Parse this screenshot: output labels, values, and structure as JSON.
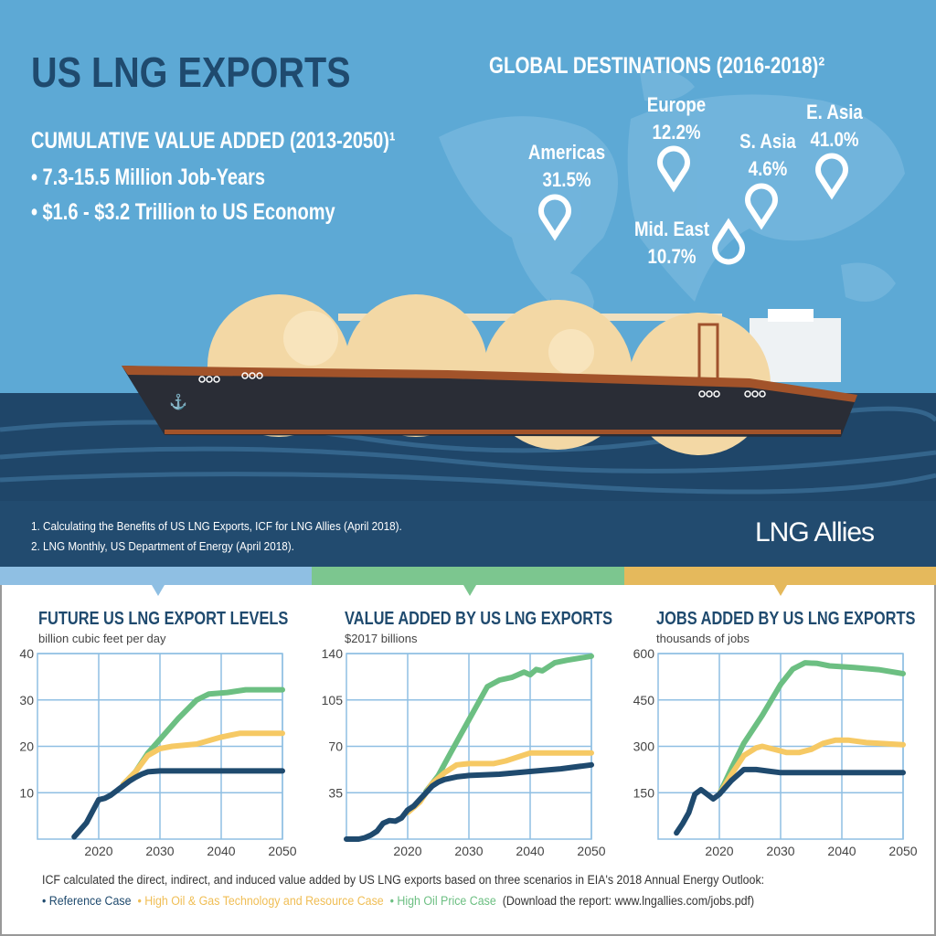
{
  "header": {
    "title": "US LNG EXPORTS",
    "cumulative_heading": "CUMULATIVE VALUE ADDED (2013-2050)¹",
    "bullets": [
      "• 7.3-15.5 Million Job-Years",
      "• $1.6 - $3.2 Trillion to US Economy"
    ]
  },
  "destinations": {
    "heading": "GLOBAL DESTINATIONS (2016-2018)²",
    "items": [
      {
        "region": "Americas",
        "share": "31.5%"
      },
      {
        "region": "Europe",
        "share": "12.2%"
      },
      {
        "region": "Mid. East",
        "share": "10.7%"
      },
      {
        "region": "S. Asia",
        "share": "4.6%"
      },
      {
        "region": "E. Asia",
        "share": "41.0%"
      }
    ]
  },
  "footnotes": [
    "1. Calculating the Benefits of US LNG Exports, ICF for LNG Allies (April 2018).",
    "2. LNG Monthly, US Department of Energy (April 2018)."
  ],
  "logo": "LNG Allies",
  "colors": {
    "sky": "#5da9d5",
    "title": "#1f4a6e",
    "sea": "#1f4669",
    "band_blue": "#8fbfe3",
    "band_green": "#7cc68f",
    "band_gold": "#e5b95c",
    "reference": "#1f4a6e",
    "tech": "#f6c964",
    "oil": "#6cbf82"
  },
  "chart_data": [
    {
      "type": "line",
      "title": "FUTURE US LNG EXPORT LEVELS",
      "ylabel": "billion cubic feet per day",
      "xlim": [
        2010,
        2050
      ],
      "ylim": [
        0,
        40
      ],
      "xticks": [
        "2020",
        "2030",
        "2040",
        "2050"
      ],
      "yticks": [
        "10",
        "20",
        "30",
        "40"
      ],
      "grid": true,
      "series": [
        {
          "name": "Reference Case",
          "color": "#1f4a6e",
          "points": [
            [
              2016,
              0.5
            ],
            [
              2017,
              2
            ],
            [
              2018,
              3.5
            ],
            [
              2019,
              6
            ],
            [
              2020,
              8.5
            ],
            [
              2021,
              8.8
            ],
            [
              2022,
              9.5
            ],
            [
              2023,
              10.5
            ],
            [
              2024,
              11.5
            ],
            [
              2025,
              12.5
            ],
            [
              2026,
              13.3
            ],
            [
              2027,
              14
            ],
            [
              2028,
              14.5
            ],
            [
              2030,
              14.7
            ],
            [
              2050,
              14.7
            ]
          ]
        },
        {
          "name": "High Oil & Gas Technology and Resource Case",
          "color": "#f6c964",
          "points": [
            [
              2024,
              11.8
            ],
            [
              2026,
              14.5
            ],
            [
              2028,
              18
            ],
            [
              2030,
              19.5
            ],
            [
              2032,
              20
            ],
            [
              2036,
              20.5
            ],
            [
              2040,
              22
            ],
            [
              2043,
              22.8
            ],
            [
              2050,
              22.8
            ]
          ]
        },
        {
          "name": "High Oil Price Case",
          "color": "#6cbf82",
          "points": [
            [
              2024,
              11.8
            ],
            [
              2026,
              14.5
            ],
            [
              2028,
              18.5
            ],
            [
              2030,
              21.5
            ],
            [
              2033,
              26
            ],
            [
              2036,
              30
            ],
            [
              2038,
              31.3
            ],
            [
              2041,
              31.6
            ],
            [
              2044,
              32.2
            ],
            [
              2050,
              32.2
            ]
          ]
        }
      ]
    },
    {
      "type": "line",
      "title": "VALUE ADDED BY US LNG EXPORTS",
      "ylabel": "$2017 billions",
      "xlim": [
        2010,
        2050
      ],
      "ylim": [
        0,
        140
      ],
      "xticks": [
        "2020",
        "2030",
        "2040",
        "2050"
      ],
      "yticks": [
        "35",
        "70",
        "105",
        "140"
      ],
      "grid": true,
      "series": [
        {
          "name": "Reference Case",
          "color": "#1f4a6e",
          "points": [
            [
              2010,
              0
            ],
            [
              2012,
              0
            ],
            [
              2013,
              1
            ],
            [
              2014,
              3
            ],
            [
              2015,
              6
            ],
            [
              2016,
              12
            ],
            [
              2017,
              14
            ],
            [
              2018,
              13.5
            ],
            [
              2019,
              16
            ],
            [
              2020,
              22
            ],
            [
              2021,
              25
            ],
            [
              2022,
              30
            ],
            [
              2023,
              35
            ],
            [
              2024,
              40
            ],
            [
              2025,
              43
            ],
            [
              2026,
              45
            ],
            [
              2028,
              47
            ],
            [
              2030,
              48
            ],
            [
              2035,
              49
            ],
            [
              2040,
              51
            ],
            [
              2045,
              53
            ],
            [
              2050,
              56
            ]
          ]
        },
        {
          "name": "High Oil & Gas Technology and Resource Case",
          "color": "#f6c964",
          "points": [
            [
              2020,
              20
            ],
            [
              2022,
              28
            ],
            [
              2023,
              35
            ],
            [
              2024,
              42
            ],
            [
              2026,
              50
            ],
            [
              2028,
              56
            ],
            [
              2030,
              57
            ],
            [
              2034,
              57
            ],
            [
              2036,
              59
            ],
            [
              2040,
              65
            ],
            [
              2045,
              65
            ],
            [
              2050,
              65
            ]
          ]
        },
        {
          "name": "High Oil Price Case",
          "color": "#6cbf82",
          "points": [
            [
              2023,
              36
            ],
            [
              2025,
              48
            ],
            [
              2027,
              65
            ],
            [
              2030,
              90
            ],
            [
              2033,
              115
            ],
            [
              2035,
              120
            ],
            [
              2037,
              122
            ],
            [
              2039,
              126
            ],
            [
              2040,
              124
            ],
            [
              2041,
              128
            ],
            [
              2042,
              127
            ],
            [
              2044,
              133
            ],
            [
              2046,
              135
            ],
            [
              2050,
              138
            ]
          ]
        }
      ]
    },
    {
      "type": "line",
      "title": "JOBS ADDED BY US LNG EXPORTS",
      "ylabel": "thousands of jobs",
      "xlim": [
        2010,
        2050
      ],
      "ylim": [
        0,
        600
      ],
      "xticks": [
        "2020",
        "2030",
        "2040",
        "2050"
      ],
      "yticks": [
        "150",
        "300",
        "450",
        "600"
      ],
      "grid": true,
      "series": [
        {
          "name": "Reference Case",
          "color": "#1f4a6e",
          "points": [
            [
              2013,
              20
            ],
            [
              2014,
              50
            ],
            [
              2015,
              85
            ],
            [
              2016,
              145
            ],
            [
              2017,
              160
            ],
            [
              2018,
              145
            ],
            [
              2019,
              130
            ],
            [
              2020,
              145
            ],
            [
              2022,
              190
            ],
            [
              2024,
              225
            ],
            [
              2026,
              225
            ],
            [
              2028,
              220
            ],
            [
              2030,
              215
            ],
            [
              2040,
              215
            ],
            [
              2050,
              215
            ]
          ]
        },
        {
          "name": "High Oil & Gas Technology and Resource Case",
          "color": "#f6c964",
          "points": [
            [
              2020,
              145
            ],
            [
              2022,
              210
            ],
            [
              2024,
              270
            ],
            [
              2026,
              295
            ],
            [
              2027,
              300
            ],
            [
              2029,
              290
            ],
            [
              2031,
              280
            ],
            [
              2033,
              280
            ],
            [
              2035,
              290
            ],
            [
              2037,
              310
            ],
            [
              2039,
              320
            ],
            [
              2041,
              320
            ],
            [
              2044,
              312
            ],
            [
              2050,
              305
            ]
          ]
        },
        {
          "name": "High Oil Price Case",
          "color": "#6cbf82",
          "points": [
            [
              2020,
              145
            ],
            [
              2022,
              230
            ],
            [
              2024,
              310
            ],
            [
              2027,
              400
            ],
            [
              2030,
              500
            ],
            [
              2032,
              550
            ],
            [
              2034,
              570
            ],
            [
              2036,
              568
            ],
            [
              2038,
              560
            ],
            [
              2042,
              555
            ],
            [
              2046,
              548
            ],
            [
              2050,
              535
            ]
          ]
        }
      ]
    }
  ],
  "footer": {
    "intro": "ICF calculated the direct, indirect, and induced value added by US LNG exports based on three scenarios in EIA's 2018 Annual Energy Outlook:",
    "legend": [
      "• Reference Case",
      "• High Oil & Gas Technology and Resource Case",
      "• High Oil Price Case"
    ],
    "download": "(Download the report: www.lngallies.com/jobs.pdf)"
  }
}
